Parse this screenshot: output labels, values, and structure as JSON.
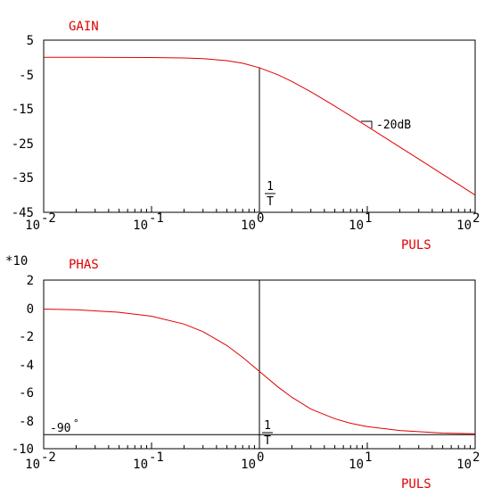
{
  "chart_data": [
    {
      "type": "line",
      "title": "GAIN",
      "xlabel": "PULS",
      "x_scale": "log",
      "xlim": [
        0.01,
        100
      ],
      "ylim": [
        -45,
        5
      ],
      "y_ticks": [
        "5",
        "-5",
        "-15",
        "-25",
        "-35",
        "-45"
      ],
      "x_ticks": [
        {
          "base": "10",
          "exp": "-2"
        },
        {
          "base": "10",
          "exp": "-1"
        },
        {
          "base": "10",
          "exp": "0"
        },
        {
          "base": "10",
          "exp": "1"
        },
        {
          "base": "10",
          "exp": "2"
        }
      ],
      "series": [
        {
          "color": "#e00000",
          "x": [
            0.01,
            0.03,
            0.1,
            0.2,
            0.3,
            0.5,
            0.7,
            1,
            1.5,
            2,
            3,
            5,
            7,
            10,
            20,
            30,
            50,
            70,
            100
          ],
          "y": [
            0.0,
            0.0,
            -0.04,
            -0.17,
            -0.37,
            -0.97,
            -1.7,
            -3.01,
            -5.12,
            -6.99,
            -10.0,
            -14.15,
            -17.0,
            -20.04,
            -26.03,
            -29.54,
            -33.98,
            -36.9,
            -40.0
          ]
        }
      ],
      "annotations": {
        "marker_label": {
          "num": "1",
          "den": "T"
        },
        "slope_label": "-20dB",
        "vline_x": 1
      }
    },
    {
      "type": "line",
      "title": "PHAS",
      "xlabel": "PULS",
      "y_multiplier": "*10",
      "x_scale": "log",
      "xlim": [
        0.01,
        100
      ],
      "ylim": [
        -10,
        2
      ],
      "y_ticks": [
        "2",
        "0",
        "-2",
        "-4",
        "-6",
        "-8",
        "-10"
      ],
      "x_ticks": [
        {
          "base": "10",
          "exp": "-2"
        },
        {
          "base": "10",
          "exp": "-1"
        },
        {
          "base": "10",
          "exp": "0"
        },
        {
          "base": "10",
          "exp": "1"
        },
        {
          "base": "10",
          "exp": "2"
        }
      ],
      "series": [
        {
          "color": "#e00000",
          "x": [
            0.01,
            0.02,
            0.05,
            0.1,
            0.2,
            0.3,
            0.5,
            0.7,
            1,
            1.5,
            2,
            3,
            5,
            7,
            10,
            20,
            50,
            100
          ],
          "y": [
            -0.06,
            -0.11,
            -0.29,
            -0.57,
            -1.13,
            -1.67,
            -2.66,
            -3.5,
            -4.5,
            -5.63,
            -6.34,
            -7.18,
            -7.87,
            -8.19,
            -8.43,
            -8.71,
            -8.89,
            -8.94
          ]
        }
      ],
      "annotations": {
        "marker_label": {
          "num": "1",
          "den": "T"
        },
        "asymptote_label": "-90",
        "asymptote_degree": "°",
        "asymptote_y": -9,
        "vline_x": 1
      }
    }
  ]
}
